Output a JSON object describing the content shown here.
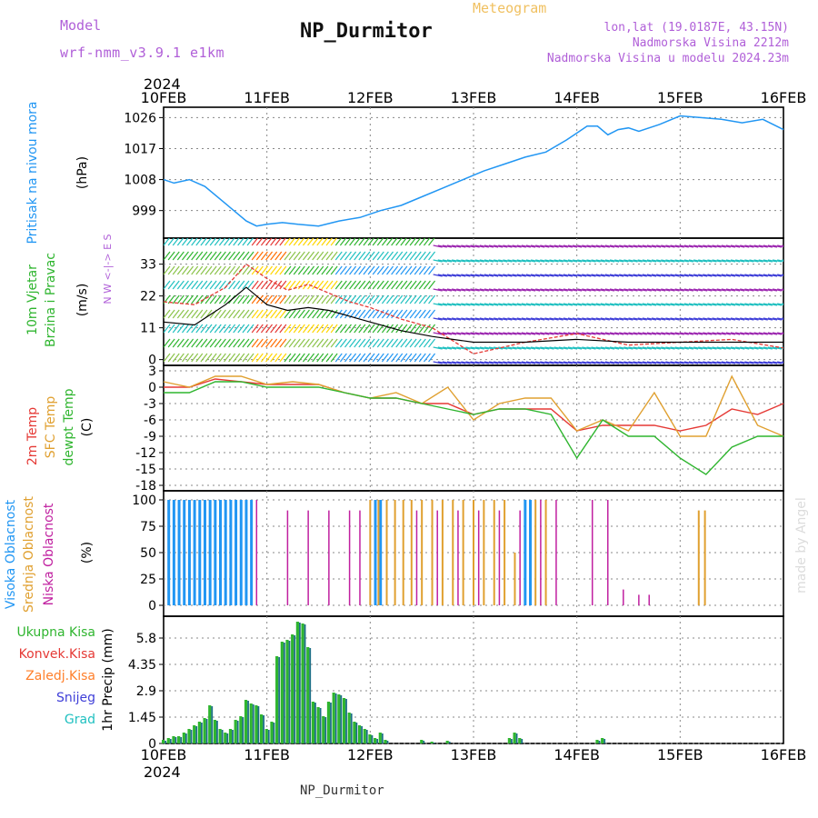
{
  "header": {
    "model_label": "Model",
    "model_value": "wrf-nmm_v3.9.1 e1km",
    "title": "NP_Durmitor",
    "meteogram_label": "Meteogram",
    "lonlat": "lon,lat (19.0187E, 43.15N)",
    "elevation": "Nadmorska Visina 2212m",
    "model_elevation": "Nadmorska Visina u modelu 2024.23m",
    "footer": "NP_Durmitor",
    "made_by": "made by Angel"
  },
  "colors": {
    "model": "#b05fd8",
    "meteogram": "#f0c060",
    "pressure": "#2196f3",
    "temp2m": "#e53935",
    "sfc": "#e0a030",
    "dewpt": "#2fb52f",
    "visoka": "#2196f3",
    "srednja": "#e0a030",
    "niska": "#c020a0",
    "ukupna": "#2fb52f",
    "konvek": "#e53935",
    "zaledj": "#ff7f2a",
    "snijeg": "#3f3fd8",
    "grad": "#20c0c0"
  },
  "chart_data": [
    {
      "type": "line",
      "panel": "pressure",
      "x_labels": [
        "10FEB",
        "11FEB",
        "12FEB",
        "13FEB",
        "14FEB",
        "15FEB",
        "16FEB"
      ],
      "year": "2024",
      "ylabel_name": "Pritisak na nivou mora",
      "ylabel_unit": "(hPa)",
      "yticks": [
        "1026",
        "1017",
        "1008",
        "999"
      ],
      "ylim": [
        991,
        1029
      ],
      "x_days": [
        0,
        0.1,
        0.25,
        0.4,
        0.6,
        0.8,
        0.9,
        1.0,
        1.15,
        1.3,
        1.5,
        1.7,
        1.9,
        2.1,
        2.3,
        2.5,
        2.7,
        2.9,
        3.1,
        3.3,
        3.5,
        3.7,
        3.9,
        4.0,
        4.1,
        4.2,
        4.3,
        4.4,
        4.5,
        4.6,
        4.8,
        5.0,
        5.2,
        5.4,
        5.6,
        5.8,
        6.0
      ],
      "values": [
        1008,
        1007,
        1008,
        1006,
        1001,
        996,
        994.5,
        995,
        995.5,
        995,
        994.5,
        996,
        997,
        999,
        1000.5,
        1003,
        1005.5,
        1008,
        1010.5,
        1012.5,
        1014.5,
        1016,
        1019.5,
        1021.5,
        1023.5,
        1023.5,
        1021,
        1022.5,
        1023,
        1022,
        1024,
        1026.5,
        1026,
        1025.5,
        1024.5,
        1025.5,
        1022.5
      ]
    },
    {
      "type": "wind",
      "panel": "wind",
      "ylabel_name": "10m Vjetar",
      "ylabel_name2": "Brzina i Pravac",
      "ylabel_unit": "(m/s)",
      "compass": "N  W <-|-> E  S",
      "yticks": [
        "33",
        "22",
        "11",
        "0"
      ],
      "ylim": [
        -2,
        42
      ],
      "x_days": [
        0,
        0.3,
        0.6,
        0.8,
        1.0,
        1.2,
        1.4,
        1.6,
        1.8,
        2.0,
        2.3,
        2.6,
        3.0,
        3.5,
        4.0,
        4.5,
        5.0,
        5.5,
        6.0
      ],
      "speed_mean": [
        13,
        12,
        19,
        25,
        19,
        17,
        18,
        17,
        15,
        13,
        10,
        8,
        6,
        6,
        7,
        6,
        6,
        6,
        6
      ],
      "speed_gust": [
        20,
        19,
        25,
        33,
        28,
        24,
        26,
        23,
        20,
        18,
        14,
        11,
        2,
        6,
        9,
        5,
        6,
        7,
        4
      ]
    },
    {
      "type": "line",
      "panel": "temperature",
      "ylabel_names": [
        "2m Temp",
        "SFC Temp",
        "dewpt Temp"
      ],
      "ylabel_unit": "(C)",
      "yticks": [
        "3",
        "0",
        "-3",
        "-6",
        "-9",
        "-12",
        "-15",
        "-18"
      ],
      "ylim": [
        -19,
        4
      ],
      "x_days": [
        0,
        0.25,
        0.5,
        0.75,
        1.0,
        1.25,
        1.5,
        1.75,
        2.0,
        2.25,
        2.5,
        2.75,
        3.0,
        3.25,
        3.5,
        3.75,
        4.0,
        4.25,
        4.5,
        4.75,
        5.0,
        5.25,
        5.5,
        5.75,
        6.0
      ],
      "series": [
        {
          "name": "2m Temp",
          "values": [
            0,
            0,
            1.5,
            1,
            0.5,
            0.5,
            0.5,
            -1,
            -2,
            -2,
            -3,
            -3,
            -5,
            -4,
            -4,
            -4,
            -8,
            -7,
            -7,
            -7,
            -8,
            -7,
            -4,
            -5,
            -3
          ]
        },
        {
          "name": "SFC Temp",
          "values": [
            1,
            0,
            2,
            2,
            0.5,
            1,
            0.5,
            -1,
            -2,
            -1,
            -3,
            0,
            -6,
            -3,
            -2,
            -2,
            -8,
            -6,
            -8,
            -1,
            -9,
            -9,
            2,
            -7,
            -9
          ]
        },
        {
          "name": "dewpt Temp",
          "values": [
            -1,
            -1,
            1,
            1,
            0,
            0,
            0,
            -1,
            -2,
            -2,
            -3,
            -4,
            -5,
            -4,
            -4,
            -5,
            -13,
            -6,
            -9,
            -9,
            -13,
            -16,
            -11,
            -9,
            -9
          ]
        }
      ]
    },
    {
      "type": "bar",
      "panel": "cloud",
      "ylabel_names": [
        "Visoka Oblacnost",
        "Srednja Oblacnost",
        "Niska Oblacnost"
      ],
      "ylabel_unit": "(%)",
      "yticks": [
        "100",
        "75",
        "50",
        "25",
        "0"
      ],
      "ylim": [
        0,
        100
      ],
      "series": [
        {
          "name": "Visoka Oblacnost",
          "x_days": [
            0.05,
            0.1,
            0.15,
            0.2,
            0.25,
            0.3,
            0.35,
            0.4,
            0.45,
            0.5,
            0.55,
            0.6,
            0.65,
            0.7,
            0.75,
            0.8,
            0.85,
            2.05,
            2.1,
            3.5,
            3.55
          ],
          "values": [
            100,
            100,
            100,
            100,
            100,
            100,
            100,
            100,
            100,
            100,
            100,
            100,
            100,
            100,
            100,
            100,
            100,
            100,
            100,
            100,
            100
          ]
        },
        {
          "name": "Srednja Oblacnost",
          "x_days": [
            2.0,
            2.08,
            2.16,
            2.24,
            2.32,
            2.4,
            2.5,
            2.6,
            2.7,
            2.8,
            2.9,
            3.0,
            3.1,
            3.2,
            3.3,
            3.4,
            3.6,
            3.7,
            5.18,
            5.24
          ],
          "values": [
            100,
            100,
            100,
            100,
            100,
            100,
            100,
            100,
            100,
            100,
            100,
            100,
            100,
            100,
            100,
            50,
            100,
            100,
            90,
            90
          ]
        },
        {
          "name": "Niska Oblacnost",
          "x_days": [
            0.9,
            1.2,
            1.4,
            1.6,
            1.8,
            1.9,
            2.45,
            2.65,
            2.85,
            3.05,
            3.25,
            3.45,
            3.65,
            3.8,
            4.15,
            4.3,
            4.45,
            4.6,
            4.7
          ],
          "values": [
            100,
            90,
            90,
            90,
            90,
            90,
            90,
            90,
            90,
            90,
            90,
            90,
            100,
            100,
            100,
            100,
            15,
            10,
            10
          ]
        }
      ]
    },
    {
      "type": "bar",
      "panel": "precipitation",
      "ylabel_name": "1hr Precip (mm)",
      "legend": [
        "Ukupna Kisa",
        "Konvek.Kisa",
        "Zaledj.Kisa",
        "Snijeg",
        "Grad"
      ],
      "yticks": [
        "5.8",
        "4.35",
        "2.9",
        "1.45",
        "0"
      ],
      "ylim": [
        0,
        7
      ],
      "x_days": [
        0.0,
        0.05,
        0.1,
        0.15,
        0.2,
        0.25,
        0.3,
        0.35,
        0.4,
        0.45,
        0.5,
        0.55,
        0.6,
        0.65,
        0.7,
        0.75,
        0.8,
        0.85,
        0.9,
        0.95,
        1.0,
        1.05,
        1.1,
        1.15,
        1.2,
        1.25,
        1.3,
        1.35,
        1.4,
        1.45,
        1.5,
        1.55,
        1.6,
        1.65,
        1.7,
        1.75,
        1.8,
        1.85,
        1.9,
        1.95,
        2.0,
        2.05,
        2.1,
        2.15,
        2.5,
        2.6,
        2.75,
        3.35,
        3.4,
        3.45,
        4.2,
        4.25
      ],
      "values": [
        0.2,
        0.3,
        0.4,
        0.4,
        0.6,
        0.8,
        1.0,
        1.2,
        1.4,
        2.1,
        1.3,
        0.8,
        0.6,
        0.8,
        1.3,
        1.5,
        2.4,
        2.2,
        2.1,
        1.6,
        0.8,
        1.2,
        4.8,
        5.6,
        5.7,
        6.0,
        6.7,
        6.6,
        5.3,
        2.3,
        2.0,
        1.5,
        2.3,
        2.8,
        2.7,
        2.5,
        1.7,
        1.2,
        1.0,
        0.8,
        0.5,
        0.3,
        0.6,
        0.2,
        0.2,
        0.1,
        0.15,
        0.3,
        0.6,
        0.3,
        0.2,
        0.3
      ]
    }
  ]
}
